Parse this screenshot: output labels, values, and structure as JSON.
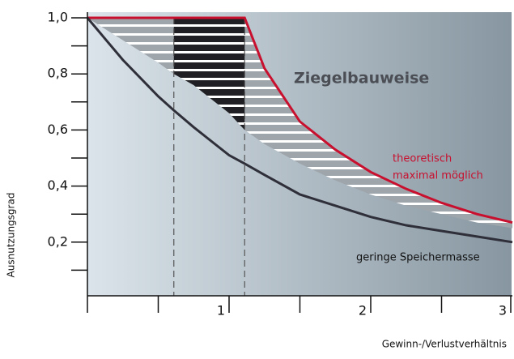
{
  "chart_data": {
    "type": "line",
    "x_label": "Gewinn-/Verlustverhältnis",
    "y_label": "Ausnutzungsgrad",
    "x": [
      0,
      0.25,
      0.5,
      0.61,
      0.75,
      1,
      1.11,
      1.25,
      1.5,
      1.75,
      2,
      2.25,
      2.5,
      2.75,
      3
    ],
    "series": [
      {
        "color": "#c8102e",
        "values": [
          1,
          1,
          1,
          1,
          1,
          1,
          1,
          0.82,
          0.63,
          0.53,
          0.45,
          0.39,
          0.34,
          0.3,
          0.27
        ]
      },
      {
        "color": "#9aa1a8",
        "band_upper": 0,
        "values": [
          1,
          0.92,
          0.84,
          0.8,
          0.76,
          0.66,
          0.6,
          0.55,
          0.48,
          0.42,
          0.37,
          0.33,
          0.3,
          0.27,
          0.25
        ]
      },
      {
        "color": "#2f2f3a",
        "values": [
          1,
          0.85,
          0.72,
          0.67,
          0.61,
          0.51,
          0.48,
          0.44,
          0.37,
          0.33,
          0.29,
          0.26,
          0.24,
          0.22,
          0.2
        ]
      }
    ],
    "highlight_range": [
      0.61,
      1.11
    ],
    "annotations": [
      "Ziegelbauweise",
      "theoretisch",
      "maximal möglich",
      "geringe Speichermasse"
    ],
    "xlim": [
      0,
      3
    ],
    "ylim": [
      0,
      1
    ],
    "xticks": [
      1,
      2,
      3
    ],
    "xminor_ticks": [
      0,
      0.5,
      1.5,
      2.5
    ],
    "yticks": [
      {
        "value": 0.2,
        "label": "0,2"
      },
      {
        "value": 0.4,
        "label": "0,4"
      },
      {
        "value": 0.6,
        "label": "0,6"
      },
      {
        "value": 0.8,
        "label": "0,8"
      },
      {
        "value": 1,
        "label": "1,0"
      }
    ],
    "yminor_ticks": [
      0.1,
      0.3,
      0.5,
      0.7,
      0.9
    ]
  }
}
